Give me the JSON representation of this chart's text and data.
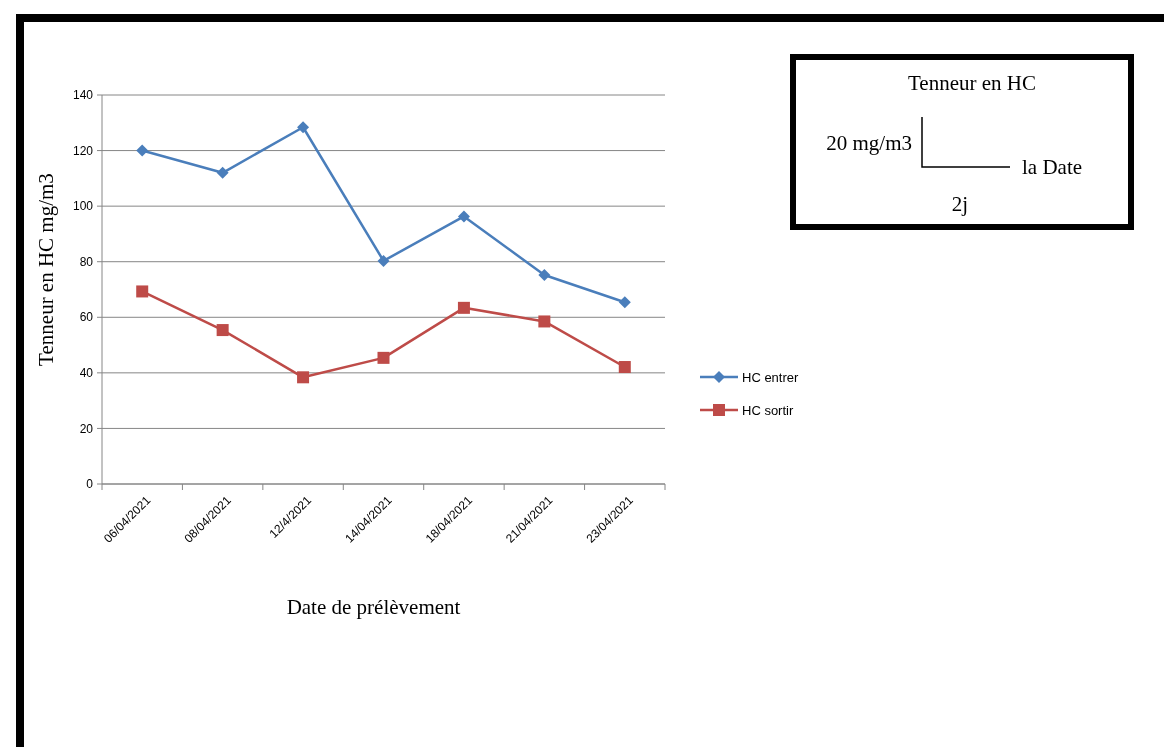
{
  "chart_data": {
    "type": "line",
    "xlabel": "Date de prélèvement",
    "ylabel": "Tenneur en HC mg/m3",
    "categories": [
      "06/04/2021",
      "08/04/2021",
      "12/4/2021",
      "14/04/2021",
      "18/04/2021",
      "21/04/2021",
      "23/04/2021"
    ],
    "series": [
      {
        "name": "HC entrer",
        "color": "#4a7ebb",
        "marker": "diamond",
        "values": [
          120,
          112,
          128.4,
          80.3,
          96.3,
          75.2,
          65.4
        ]
      },
      {
        "name": "HC sortir",
        "color": "#be4b48",
        "marker": "square",
        "values": [
          69.3,
          55.4,
          38.4,
          45.4,
          63.4,
          58.5,
          42.1
        ]
      }
    ],
    "ylim": [
      0,
      140
    ],
    "yticks": [
      0,
      20,
      40,
      60,
      80,
      100,
      120,
      140
    ],
    "grid": "y",
    "legend": "right",
    "annotations": [
      "Tenneur en HC",
      "20 mg/m3",
      "la Date",
      "2j"
    ]
  }
}
